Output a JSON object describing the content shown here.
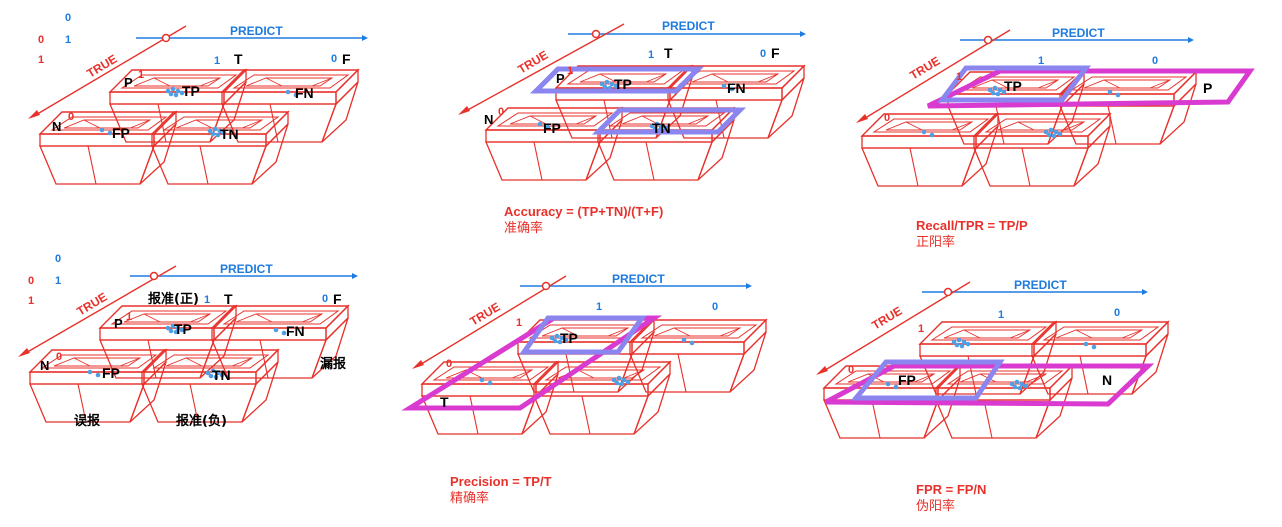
{
  "colors": {
    "red": "#e8312b",
    "blue": "#1e7be0",
    "highlight_blue": "#8b85f0",
    "highlight_magenta": "#d93bd0",
    "ball": "#4f9fe6"
  },
  "panels": [
    {
      "predict": "PREDICT",
      "true": "TRUE",
      "col1": "1",
      "col1_letter": "T",
      "col0": "0",
      "col0_letter": "F",
      "row1_letter": "P",
      "row1": "1",
      "row0_letter": "N",
      "row0": "0",
      "cells": {
        "tp": "TP",
        "fn": "FN",
        "fp": "FP",
        "tn": "TN"
      },
      "legend": {
        "zero": "0",
        "red0": "0",
        "blue1": "1",
        "red1": "1"
      }
    },
    {
      "predict": "PREDICT",
      "true": "TRUE",
      "col1": "1",
      "col1_letter": "T",
      "col0": "0",
      "col0_letter": "F",
      "row1_letter": "P",
      "row1": "1",
      "row0_letter": "N",
      "row0": "0",
      "cells": {
        "tp": "TP",
        "fn": "FN",
        "fp": "FP",
        "tn": "TN"
      },
      "caption": "Accuracy = (TP+TN)/(T+F)",
      "caption_cn": "准确率"
    },
    {
      "predict": "PREDICT",
      "true": "TRUE",
      "col1": "1",
      "col0": "0",
      "row1": "1",
      "row0": "0",
      "cells": {
        "tp": "TP",
        "p": "P"
      },
      "caption": "Recall/TPR = TP/P",
      "caption_cn": "正阳率"
    },
    {
      "predict": "PREDICT",
      "true": "TRUE",
      "col1": "1",
      "col1_letter": "T",
      "col0": "0",
      "col0_letter": "F",
      "row1_letter": "P",
      "row1": "1",
      "row0_letter": "N",
      "row0": "0",
      "cells": {
        "tp": "TP",
        "fn": "FN",
        "fp": "FP",
        "tn": "TN"
      },
      "legend": {
        "zero": "0",
        "red0": "0",
        "blue1": "1",
        "red1": "1"
      },
      "notes": {
        "report_pos": "报准(正)",
        "missed": "漏报",
        "false_report": "误报",
        "report_neg": "报准(负)"
      }
    },
    {
      "predict": "PREDICT",
      "true": "TRUE",
      "col1": "1",
      "col0": "0",
      "row1": "1",
      "row0": "0",
      "cells": {
        "tp": "TP",
        "t": "T"
      },
      "caption": "Precision = TP/T",
      "caption_cn": "精确率"
    },
    {
      "predict": "PREDICT",
      "true": "TRUE",
      "col1": "1",
      "col0": "0",
      "row1": "1",
      "row0": "0",
      "cells": {
        "fp": "FP",
        "n": "N"
      },
      "caption": "FPR = FP/N",
      "caption_cn": "伪阳率"
    }
  ]
}
